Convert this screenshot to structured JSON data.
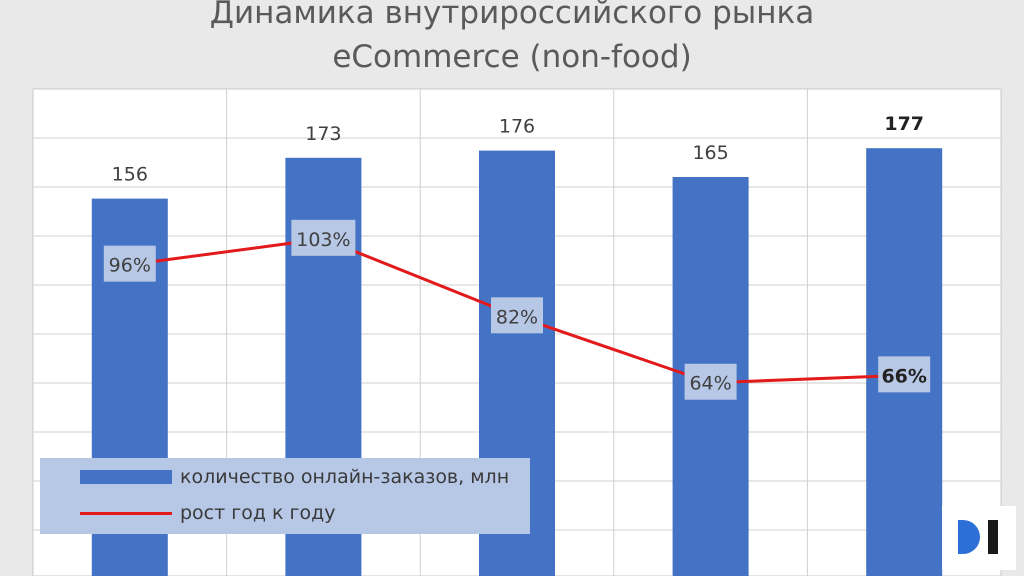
{
  "chart_data": {
    "type": "bar",
    "title": "Динамика внутрироссийского рынка",
    "subtitle": "eCommerce  (non-food)",
    "categories": [
      "",
      "",
      "",
      "",
      ""
    ],
    "series": [
      {
        "name": "количество онлайн-заказов, млн",
        "type": "bar",
        "values": [
          156,
          173,
          176,
          165,
          177
        ],
        "labels": [
          "156",
          "173",
          "176",
          "165",
          "177"
        ],
        "bold": [
          false,
          false,
          false,
          false,
          true
        ],
        "color": "#4472c4"
      },
      {
        "name": "рост год к году",
        "type": "line",
        "values": [
          96,
          103,
          82,
          64,
          66
        ],
        "labels": [
          "96%",
          "103%",
          "82%",
          "64%",
          "66%"
        ],
        "bold": [
          false,
          false,
          false,
          false,
          true
        ],
        "color": "#e31a1c"
      }
    ],
    "grid": true,
    "legend_position": "bottom-left"
  },
  "logo": {
    "text": "DI"
  }
}
